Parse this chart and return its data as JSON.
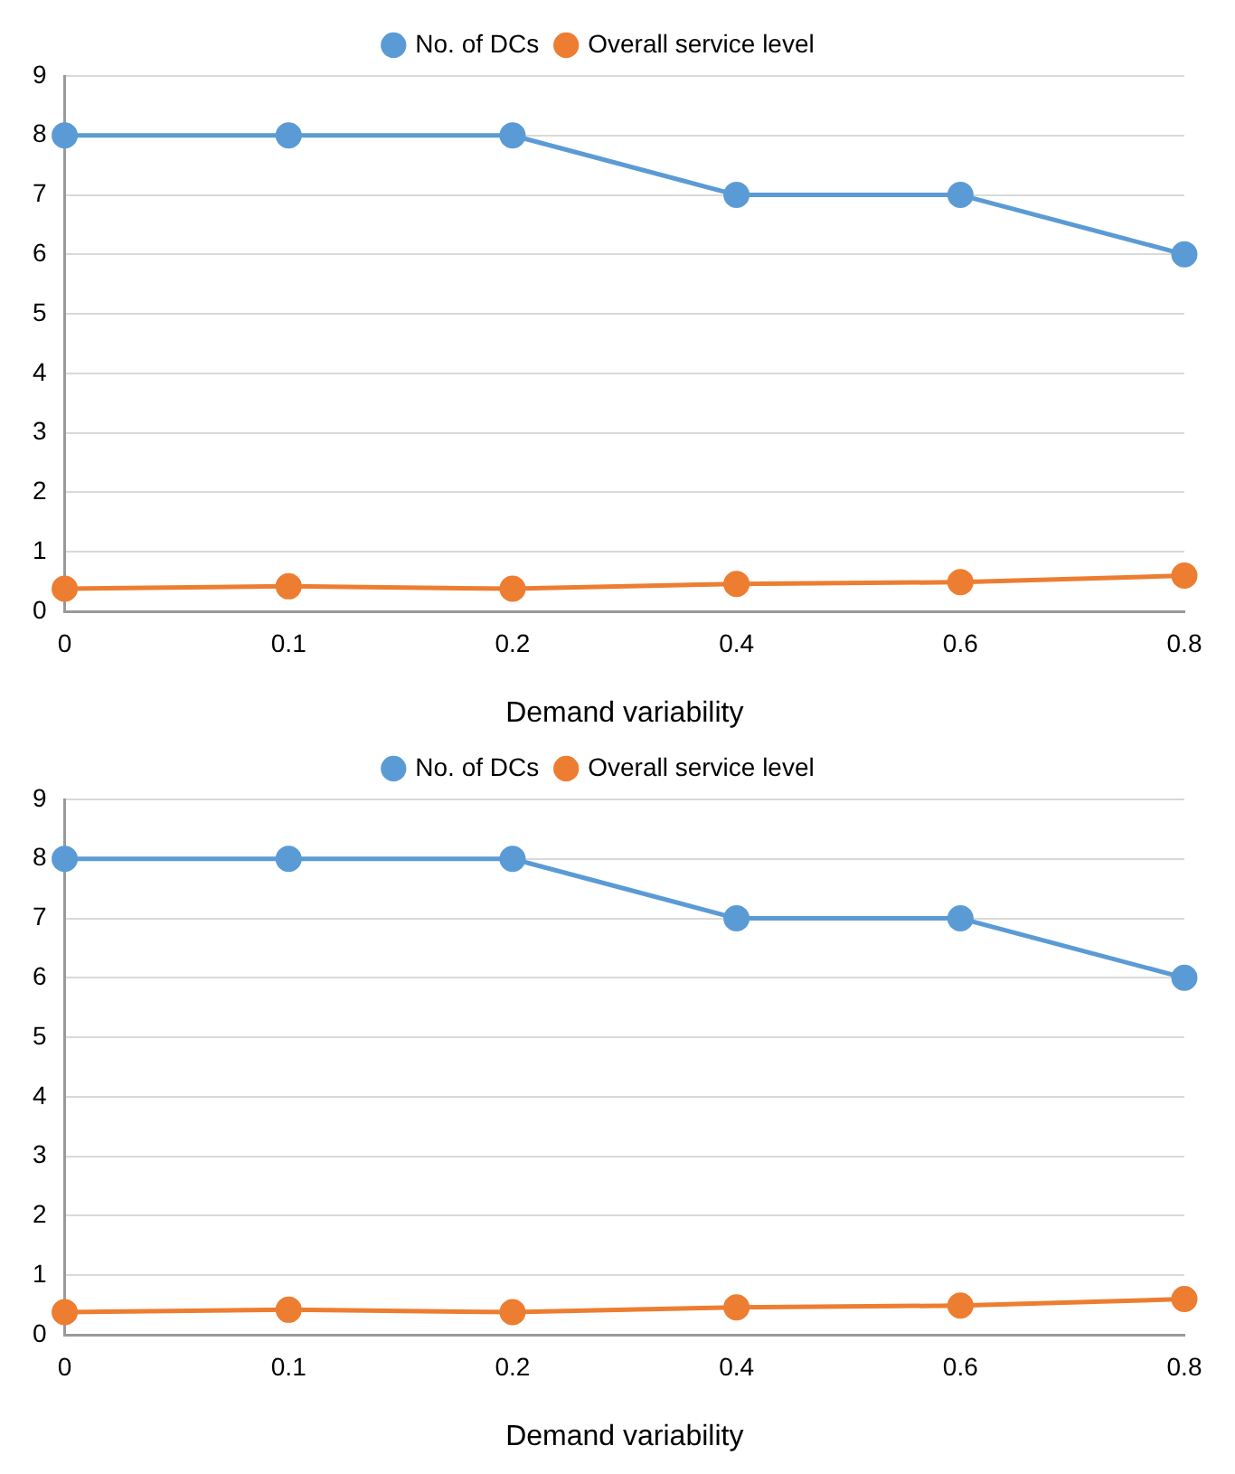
{
  "chart_data": [
    {
      "type": "line",
      "xlabel": "Demand variability",
      "categories": [
        "0",
        "0.1",
        "0.2",
        "0.4",
        "0.6",
        "0.8"
      ],
      "series": [
        {
          "name": "No. of DCs",
          "color": "#5b9bd5",
          "values": [
            8,
            8,
            8,
            7,
            7,
            6
          ]
        },
        {
          "name": "Overall service level",
          "color": "#ed7d31",
          "values": [
            0.38,
            0.42,
            0.38,
            0.46,
            0.49,
            0.6
          ]
        }
      ],
      "ylim": [
        0,
        9
      ],
      "yticks": [
        0,
        1,
        2,
        3,
        4,
        5,
        6,
        7,
        8,
        9
      ],
      "grid": "y",
      "legend": "top",
      "marker": "circle"
    },
    {
      "type": "line",
      "xlabel": "Demand variability",
      "categories": [
        "0",
        "0.1",
        "0.2",
        "0.4",
        "0.6",
        "0.8"
      ],
      "series": [
        {
          "name": "No. of DCs",
          "color": "#5b9bd5",
          "values": [
            8,
            8,
            8,
            7,
            7,
            6
          ]
        },
        {
          "name": "Overall service level",
          "color": "#ed7d31",
          "values": [
            0.38,
            0.42,
            0.38,
            0.46,
            0.49,
            0.6
          ]
        }
      ],
      "ylim": [
        0,
        9
      ],
      "yticks": [
        0,
        1,
        2,
        3,
        4,
        5,
        6,
        7,
        8,
        9
      ],
      "grid": "y",
      "legend": "top",
      "marker": "circle"
    }
  ]
}
